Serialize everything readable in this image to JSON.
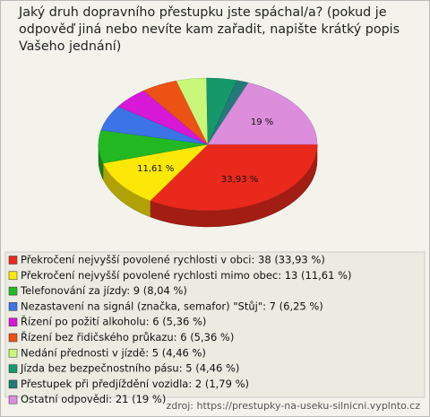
{
  "chart_data": {
    "type": "pie",
    "title": "Jaký druh dopravního přestupku jste spáchal/a? (pokud je odpověď jiná nebo nevíte kam zařadit, napište krátký popis Vašeho jednání)",
    "legend": [
      "Překročení nejvyšší povolené rychlosti v obci: 38 (33,93 %)",
      "Překročení nejvyšší povolené rychlosti mimo obec: 13 (11,61 %)",
      "Telefonování za jízdy: 9 (8,04 %)",
      "Nezastavení na signál (značka, semafor) \"Stůj\": 7 (6,25 %)",
      "Řízení po požití alkoholu: 6 (5,36 %)",
      "Řízení bez řidičského průkazu: 6 (5,36 %)",
      "Nedání přednosti v jízdě: 5 (4,46 %)",
      "Jízda bez bezpečnostního pásu: 5 (4,46 %)",
      "Přestupek při předjíždění vozidla: 2 (1,79 %)",
      "Ostatní odpovědi: 21 (19 %)"
    ],
    "values": [
      33.93,
      11.61,
      8.04,
      6.25,
      5.36,
      5.36,
      4.46,
      4.46,
      1.79,
      19
    ],
    "value_labels": [
      "33,93 %",
      "11,61 %",
      null,
      null,
      null,
      null,
      null,
      null,
      null,
      "19 %"
    ],
    "colors": [
      "#e8291c",
      "#fbe806",
      "#22b822",
      "#3a74e6",
      "#d718d7",
      "#ec5214",
      "#c9f77a",
      "#16996a",
      "#237a7a",
      "#dc8ddc"
    ],
    "source": "zdroj: https://prestupky-na-useku-silnicni.vyplnto.cz"
  }
}
